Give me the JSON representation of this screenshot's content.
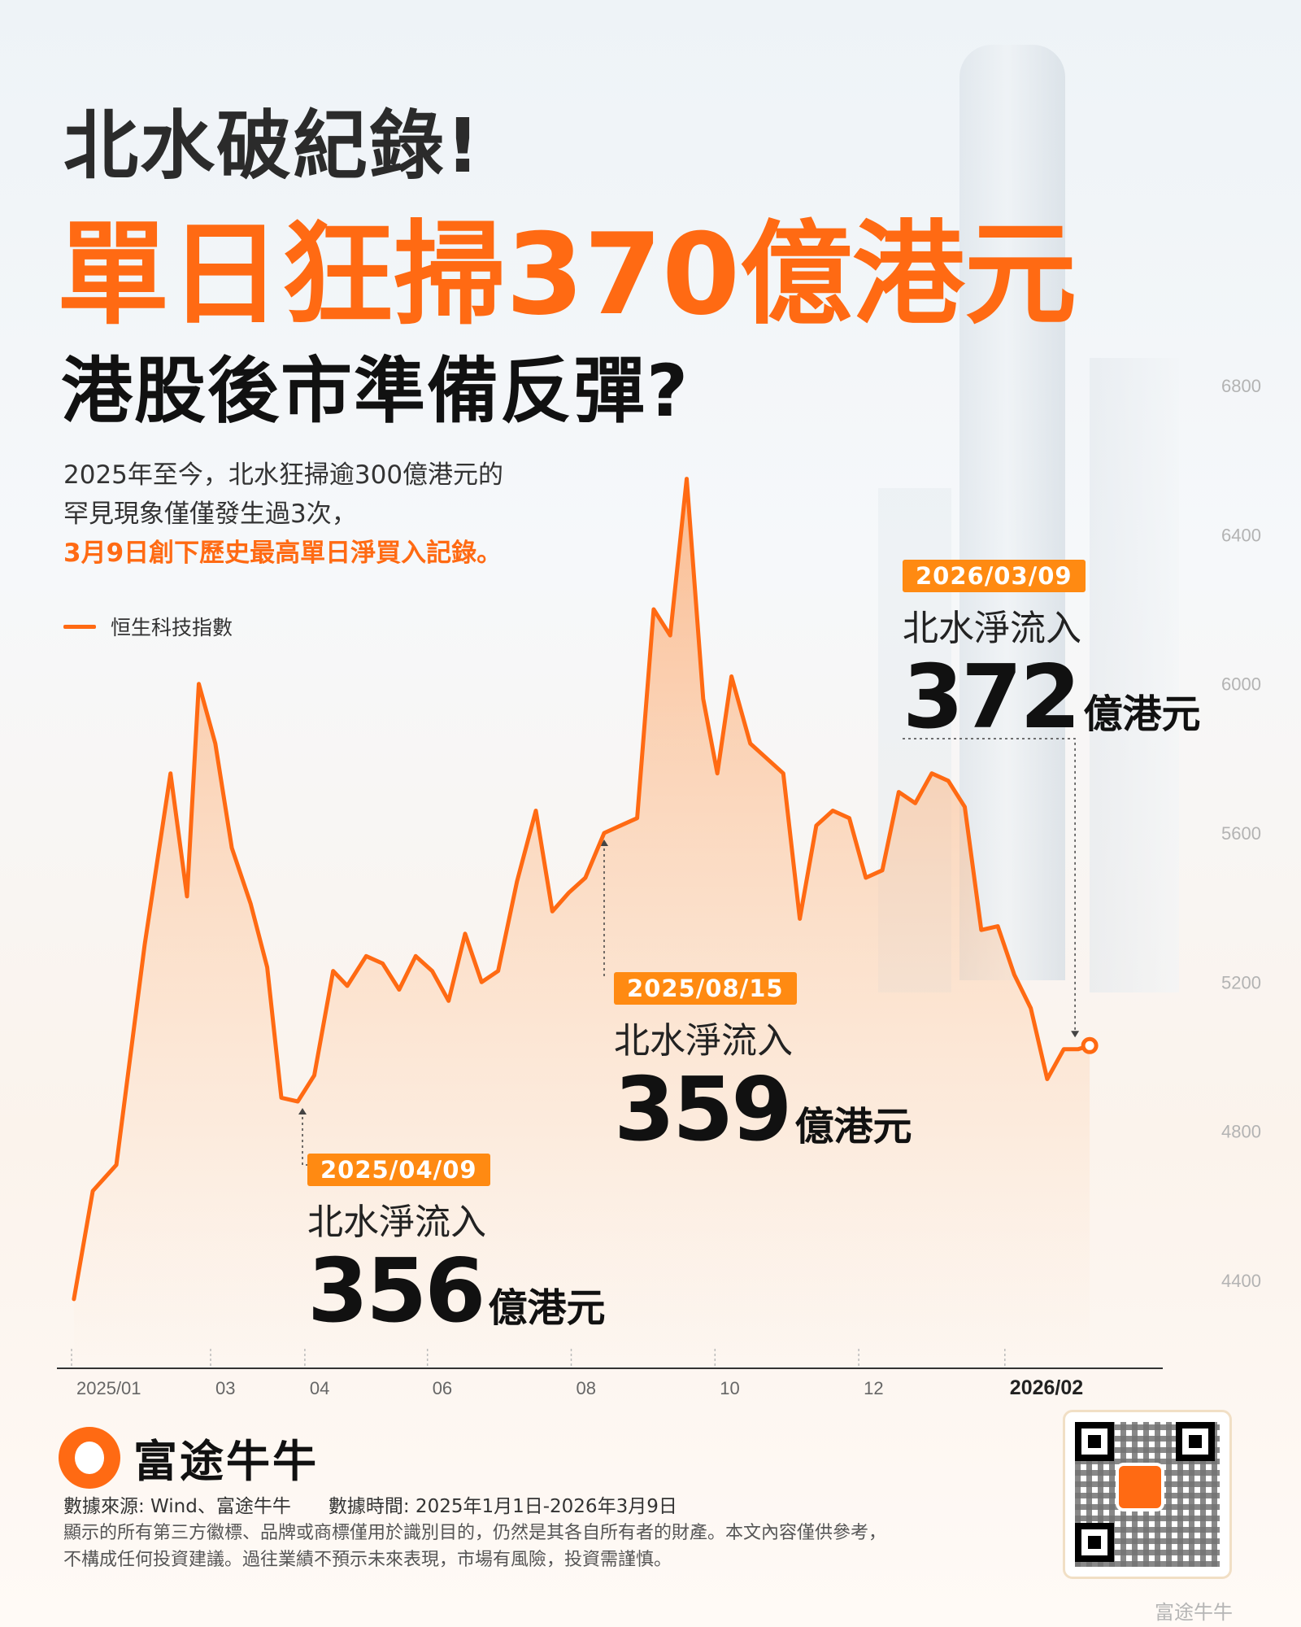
{
  "headline": {
    "line1": "北水破紀錄!",
    "line2": "單日狂掃370億港元",
    "line3": "港股後市準備反彈?"
  },
  "description": {
    "line1": "2025年至今，北水狂掃逾300億港元的",
    "line2": "罕見現象僅僅發生過3次，",
    "line3": "3月9日創下歷史最高單日淨買入記錄。"
  },
  "legend_label": "恒生科技指數",
  "colors": {
    "accent": "#ff6a13",
    "label_bg": "#ff8a12"
  },
  "chart_data": {
    "type": "area",
    "series": [
      {
        "name": "恒生科技指數",
        "x": [
          "2025-01-02",
          "2025-01-10",
          "2025-01-20",
          "2025-02-01",
          "2025-02-12",
          "2025-02-19",
          "2025-02-24",
          "2025-03-03",
          "2025-03-10",
          "2025-03-18",
          "2025-03-25",
          "2025-03-31",
          "2025-04-07",
          "2025-04-14",
          "2025-04-22",
          "2025-04-28",
          "2025-05-06",
          "2025-05-13",
          "2025-05-20",
          "2025-05-27",
          "2025-06-03",
          "2025-06-10",
          "2025-06-17",
          "2025-06-24",
          "2025-07-01",
          "2025-07-09",
          "2025-07-17",
          "2025-07-24",
          "2025-07-31",
          "2025-08-07",
          "2025-08-15",
          "2025-08-22",
          "2025-08-29",
          "2025-09-05",
          "2025-09-12",
          "2025-09-19",
          "2025-09-26",
          "2025-10-02",
          "2025-10-08",
          "2025-10-16",
          "2025-10-23",
          "2025-10-30",
          "2025-11-06",
          "2025-11-13",
          "2025-11-20",
          "2025-11-27",
          "2025-12-04",
          "2025-12-11",
          "2025-12-18",
          "2025-12-25",
          "2026-01-01",
          "2026-01-08",
          "2026-01-15",
          "2026-01-22",
          "2026-01-29",
          "2026-02-05",
          "2026-02-12",
          "2026-02-19",
          "2026-02-26",
          "2026-03-04",
          "2026-03-09"
        ],
        "values": [
          4350,
          4640,
          4710,
          5300,
          5760,
          5430,
          6000,
          5840,
          5560,
          5410,
          5240,
          4890,
          4880,
          4950,
          5230,
          5190,
          5270,
          5250,
          5180,
          5270,
          5230,
          5150,
          5330,
          5200,
          5230,
          5470,
          5660,
          5390,
          5440,
          5480,
          5600,
          5620,
          5640,
          6200,
          6130,
          6550,
          5960,
          5760,
          6020,
          5840,
          5800,
          5760,
          5370,
          5620,
          5660,
          5640,
          5480,
          5500,
          5710,
          5680,
          5760,
          5740,
          5670,
          5340,
          5350,
          5220,
          5130,
          4940,
          5020,
          5020,
          5030
        ]
      }
    ],
    "yticks": [
      "4400",
      "4800",
      "5200",
      "5600",
      "6000",
      "6400",
      "6800"
    ],
    "ylim": [
      4200,
      6900
    ],
    "xticks": [
      "2025/01",
      "03",
      "04",
      "06",
      "08",
      "10",
      "12",
      "2026/02"
    ],
    "annotations": [
      {
        "date": "2025/04/09",
        "label": "北水淨流入",
        "number": "356",
        "unit": "億港元"
      },
      {
        "date": "2025/08/15",
        "label": "北水淨流入",
        "number": "359",
        "unit": "億港元"
      },
      {
        "date": "2026/03/09",
        "label": "北水淨流入",
        "number": "372",
        "unit": "億港元"
      }
    ],
    "grid": false,
    "legend_position": "top-left"
  },
  "footer": {
    "brand": "富途牛牛",
    "source_label": "數據來源: Wind、富途牛牛",
    "time_label": "數據時間: 2025年1月1日-2026年3月9日",
    "disclaimer_line1": "顯示的所有第三方徽標、品牌或商標僅用於識別目的，仍然是其各自所有者的財產。本文內容僅供參考，",
    "disclaimer_line2": "不構成任何投資建議。過往業績不預示未來表現，市場有風險，投資需謹慎。",
    "watermark": "富途牛牛"
  }
}
